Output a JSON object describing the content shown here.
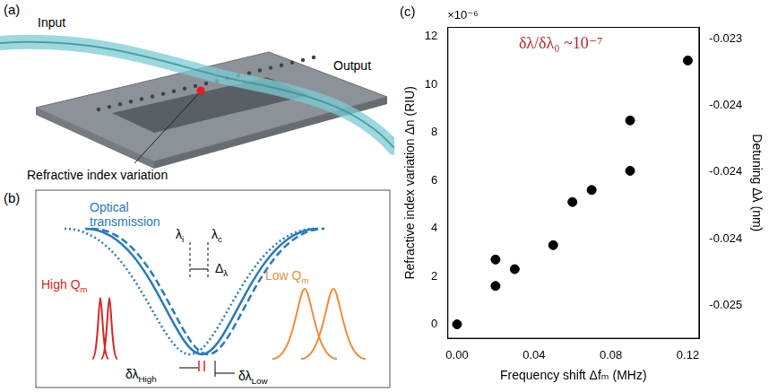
{
  "panel_a": {
    "letter": "(a)",
    "input": "Input",
    "output": "Output",
    "label": "Refractive index variation"
  },
  "panel_b": {
    "letter": "(b)",
    "curve_label": "Optical transmission",
    "lambda_i": {
      "base": "λ",
      "sub": "i"
    },
    "lambda_c": {
      "base": "λ",
      "sub": "c"
    },
    "detuning": {
      "base": "Δ",
      "sub": "λ"
    },
    "high_q": {
      "base": "High Q",
      "sub": "m"
    },
    "low_q": {
      "base": "Low Q",
      "sub": "m"
    },
    "dl_high": {
      "base": "δλ",
      "sub": "High"
    },
    "dl_low": {
      "base": "δλ",
      "sub": "Low"
    }
  },
  "chart_data": {
    "type": "scatter",
    "letter": "(c)",
    "x_label": "Frequency shift Δfₘ (MHz)",
    "y_label": "Refractive index variation Δn (RIU)",
    "y2_label": "Detuning Δλ (nm)",
    "y_multiplier": "×10⁻⁶",
    "annotation": "δλ/δλ₀ ~10⁻⁷",
    "x": [
      0,
      0.02,
      0.02,
      0.03,
      0.05,
      0.06,
      0.07,
      0.09,
      0.09,
      0.12
    ],
    "values": [
      0,
      1.6,
      2.7,
      2.3,
      3.3,
      5.1,
      5.6,
      6.4,
      8.5,
      11
    ],
    "color": "#000000",
    "marker": "circle",
    "grid": false,
    "xlim": [
      -0.005,
      0.126
    ],
    "xticks": [
      {
        "value": 0,
        "label": "0.00"
      },
      0.04,
      0.08,
      0.12
    ],
    "ylim": [
      -0.6,
      12.4
    ],
    "yticks": [
      0,
      2,
      4,
      6,
      8,
      10,
      12
    ],
    "y2lim": [
      -0.025,
      -0.02313
    ],
    "y2ticks": [
      {
        "value": -0.0248,
        "label": "-0.025"
      },
      {
        "value": -0.0244,
        "label": "-0.024"
      },
      {
        "value": -0.024,
        "label": "-0.024"
      },
      {
        "value": -0.0236,
        "label": "-0.024"
      },
      {
        "value": -0.0232,
        "label": "-0.023"
      }
    ]
  }
}
